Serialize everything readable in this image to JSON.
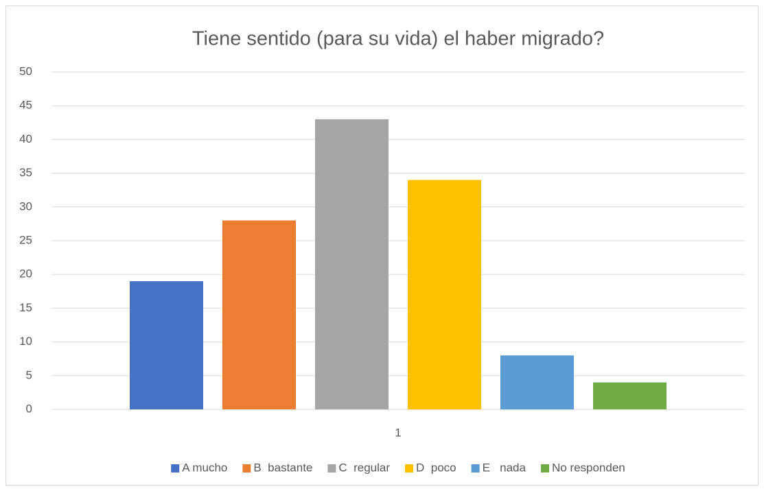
{
  "chart_data": {
    "type": "bar",
    "title": "Tiene sentido (para su vida) el haber migrado?",
    "categories": [
      "1"
    ],
    "series": [
      {
        "name": "A mucho",
        "color": "#4472c4",
        "values": [
          19
        ]
      },
      {
        "name": "B  bastante",
        "color": "#ed7d31",
        "values": [
          28
        ]
      },
      {
        "name": "C  regular",
        "color": "#a5a5a5",
        "values": [
          43
        ]
      },
      {
        "name": "D  poco",
        "color": "#ffc000",
        "values": [
          34
        ]
      },
      {
        "name": "E   nada",
        "color": "#5b9bd5",
        "values": [
          8
        ]
      },
      {
        "name": "No responden",
        "color": "#70ad47",
        "values": [
          4
        ]
      }
    ],
    "ylim": [
      0,
      50
    ],
    "yticks": [
      0,
      5,
      10,
      15,
      20,
      25,
      30,
      35,
      40,
      45,
      50
    ],
    "grid": true,
    "legend": "bottom"
  }
}
